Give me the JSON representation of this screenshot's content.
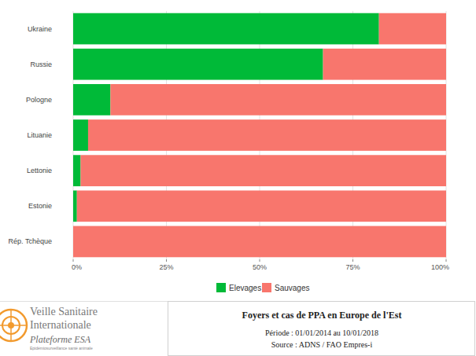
{
  "chart_data": {
    "type": "bar",
    "orientation": "horizontal",
    "stacked": true,
    "title": "Foyers et cas de PPA en Europe de l'Est",
    "subtitle": "Période : 01/01/2014 au 10/01/2018",
    "annotations": [
      "Source : ADNS / FAO Empres-i",
      "Veille Sanitaire",
      "Internationale",
      "Plateforme ESA",
      "Epidémiosurveillance santé animale"
    ],
    "categories": [
      "Ukraine",
      "Russie",
      "Pologne",
      "Lituanie",
      "Lettonie",
      "Estonie",
      "Rép. Tchèque"
    ],
    "series": [
      {
        "name": "Elevages",
        "color": "#00ba38",
        "values": [
          82,
          67,
          10,
          4,
          2,
          1,
          0
        ]
      },
      {
        "name": "Sauvages",
        "color": "#f8766d",
        "values": [
          18,
          33,
          90,
          96,
          98,
          99,
          100
        ]
      }
    ],
    "xlim": [
      0,
      100
    ],
    "xticks": [
      {
        "value": 0,
        "label": "0%"
      },
      {
        "value": 25,
        "label": "25%"
      },
      {
        "value": 50,
        "label": "50%"
      },
      {
        "value": 75,
        "label": "75%"
      },
      {
        "value": 100,
        "label": "100%"
      }
    ],
    "grid": true,
    "legend": "bottom"
  }
}
